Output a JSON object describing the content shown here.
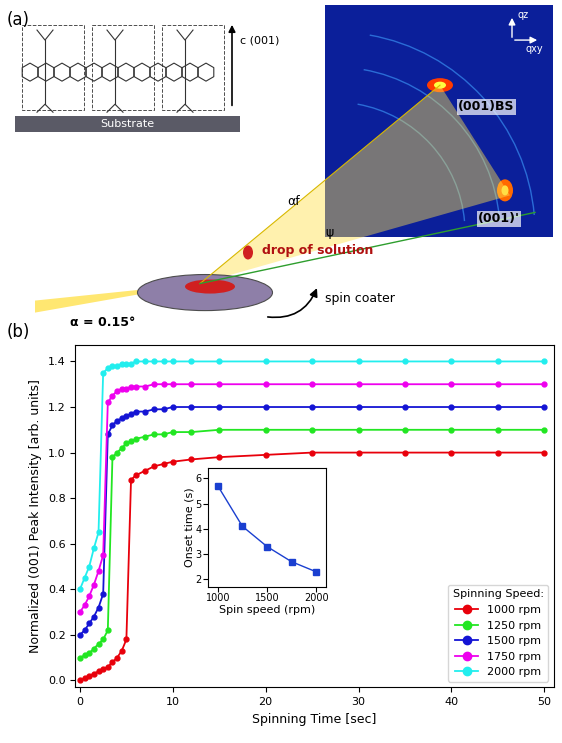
{
  "diagram": {
    "panel_a_label": "(a)",
    "panel_b_label": "(b)",
    "molecule": {
      "axis_label": "c (001)",
      "substrate": "Substrate"
    },
    "detector": {
      "axes": [
        "qz",
        "qxy"
      ],
      "peaks": [
        "(001)BS",
        "(001)'"
      ]
    },
    "setup": {
      "drop": "drop of solution",
      "spinner": "spin coater",
      "incidence": "α = 0.15°",
      "exit_angle": "αf",
      "tilt": "ψ"
    }
  },
  "chart_data": [
    {
      "type": "line",
      "xlabel": "Spinning Time [sec]",
      "ylabel": "Normalized (001) Peak Intensity [arb. units]",
      "x": [
        0,
        0.5,
        1,
        1.5,
        2,
        2.5,
        3,
        3.5,
        4,
        4.5,
        5,
        5.5,
        6,
        7,
        8,
        9,
        10,
        12,
        15,
        20,
        25,
        30,
        35,
        40,
        45,
        50
      ],
      "series": [
        {
          "name": "1000 rpm",
          "color": "#e8000b",
          "marker": "circle",
          "values": [
            0.0,
            0.01,
            0.02,
            0.03,
            0.04,
            0.05,
            0.06,
            0.08,
            0.1,
            0.13,
            0.18,
            0.88,
            0.9,
            0.92,
            0.94,
            0.95,
            0.96,
            0.97,
            0.98,
            0.99,
            1.0,
            1.0,
            1.0,
            1.0,
            1.0,
            1.0
          ]
        },
        {
          "name": "1250 rpm",
          "color": "#22e622",
          "marker": "circle",
          "values": [
            0.1,
            0.11,
            0.12,
            0.14,
            0.16,
            0.18,
            0.22,
            0.98,
            1.0,
            1.02,
            1.04,
            1.05,
            1.06,
            1.07,
            1.08,
            1.08,
            1.09,
            1.09,
            1.1,
            1.1,
            1.1,
            1.1,
            1.1,
            1.1,
            1.1,
            1.1
          ]
        },
        {
          "name": "1500 rpm",
          "color": "#1414d4",
          "marker": "circle",
          "values": [
            0.2,
            0.22,
            0.25,
            0.28,
            0.32,
            0.38,
            1.08,
            1.12,
            1.14,
            1.15,
            1.16,
            1.17,
            1.18,
            1.18,
            1.19,
            1.19,
            1.2,
            1.2,
            1.2,
            1.2,
            1.2,
            1.2,
            1.2,
            1.2,
            1.2,
            1.2
          ]
        },
        {
          "name": "1750 rpm",
          "color": "#ee00ee",
          "marker": "circle",
          "values": [
            0.3,
            0.33,
            0.37,
            0.42,
            0.48,
            0.55,
            1.22,
            1.25,
            1.27,
            1.28,
            1.28,
            1.29,
            1.29,
            1.29,
            1.3,
            1.3,
            1.3,
            1.3,
            1.3,
            1.3,
            1.3,
            1.3,
            1.3,
            1.3,
            1.3,
            1.3
          ]
        },
        {
          "name": "2000 rpm",
          "color": "#22eeee",
          "marker": "circle",
          "values": [
            0.4,
            0.45,
            0.5,
            0.58,
            0.65,
            1.35,
            1.37,
            1.38,
            1.38,
            1.39,
            1.39,
            1.39,
            1.4,
            1.4,
            1.4,
            1.4,
            1.4,
            1.4,
            1.4,
            1.4,
            1.4,
            1.4,
            1.4,
            1.4,
            1.4,
            1.4
          ]
        }
      ],
      "xlim": [
        -0.5,
        51
      ],
      "ylim": [
        -0.03,
        1.47
      ],
      "xticks": [
        0,
        10,
        20,
        30,
        40,
        50
      ],
      "yticks": [
        0.0,
        0.2,
        0.4,
        0.6,
        0.8,
        1.0,
        1.2,
        1.4
      ],
      "legend": "lower right",
      "legend_title": "Spinning Speed:"
    },
    {
      "type": "line",
      "xlabel": "Spin speed (rpm)",
      "ylabel": "Onset time (s)",
      "x": [
        1000,
        1250,
        1500,
        1750,
        2000
      ],
      "series": [
        {
          "color": "#1a3fd0",
          "marker": "square",
          "values": [
            5.7,
            4.1,
            3.3,
            2.7,
            2.3
          ]
        }
      ],
      "xlim": [
        900,
        2100
      ],
      "ylim": [
        1.7,
        6.4
      ],
      "xticks": [
        1000,
        1500,
        2000
      ],
      "yticks": [
        2,
        3,
        4,
        5,
        6
      ]
    }
  ]
}
